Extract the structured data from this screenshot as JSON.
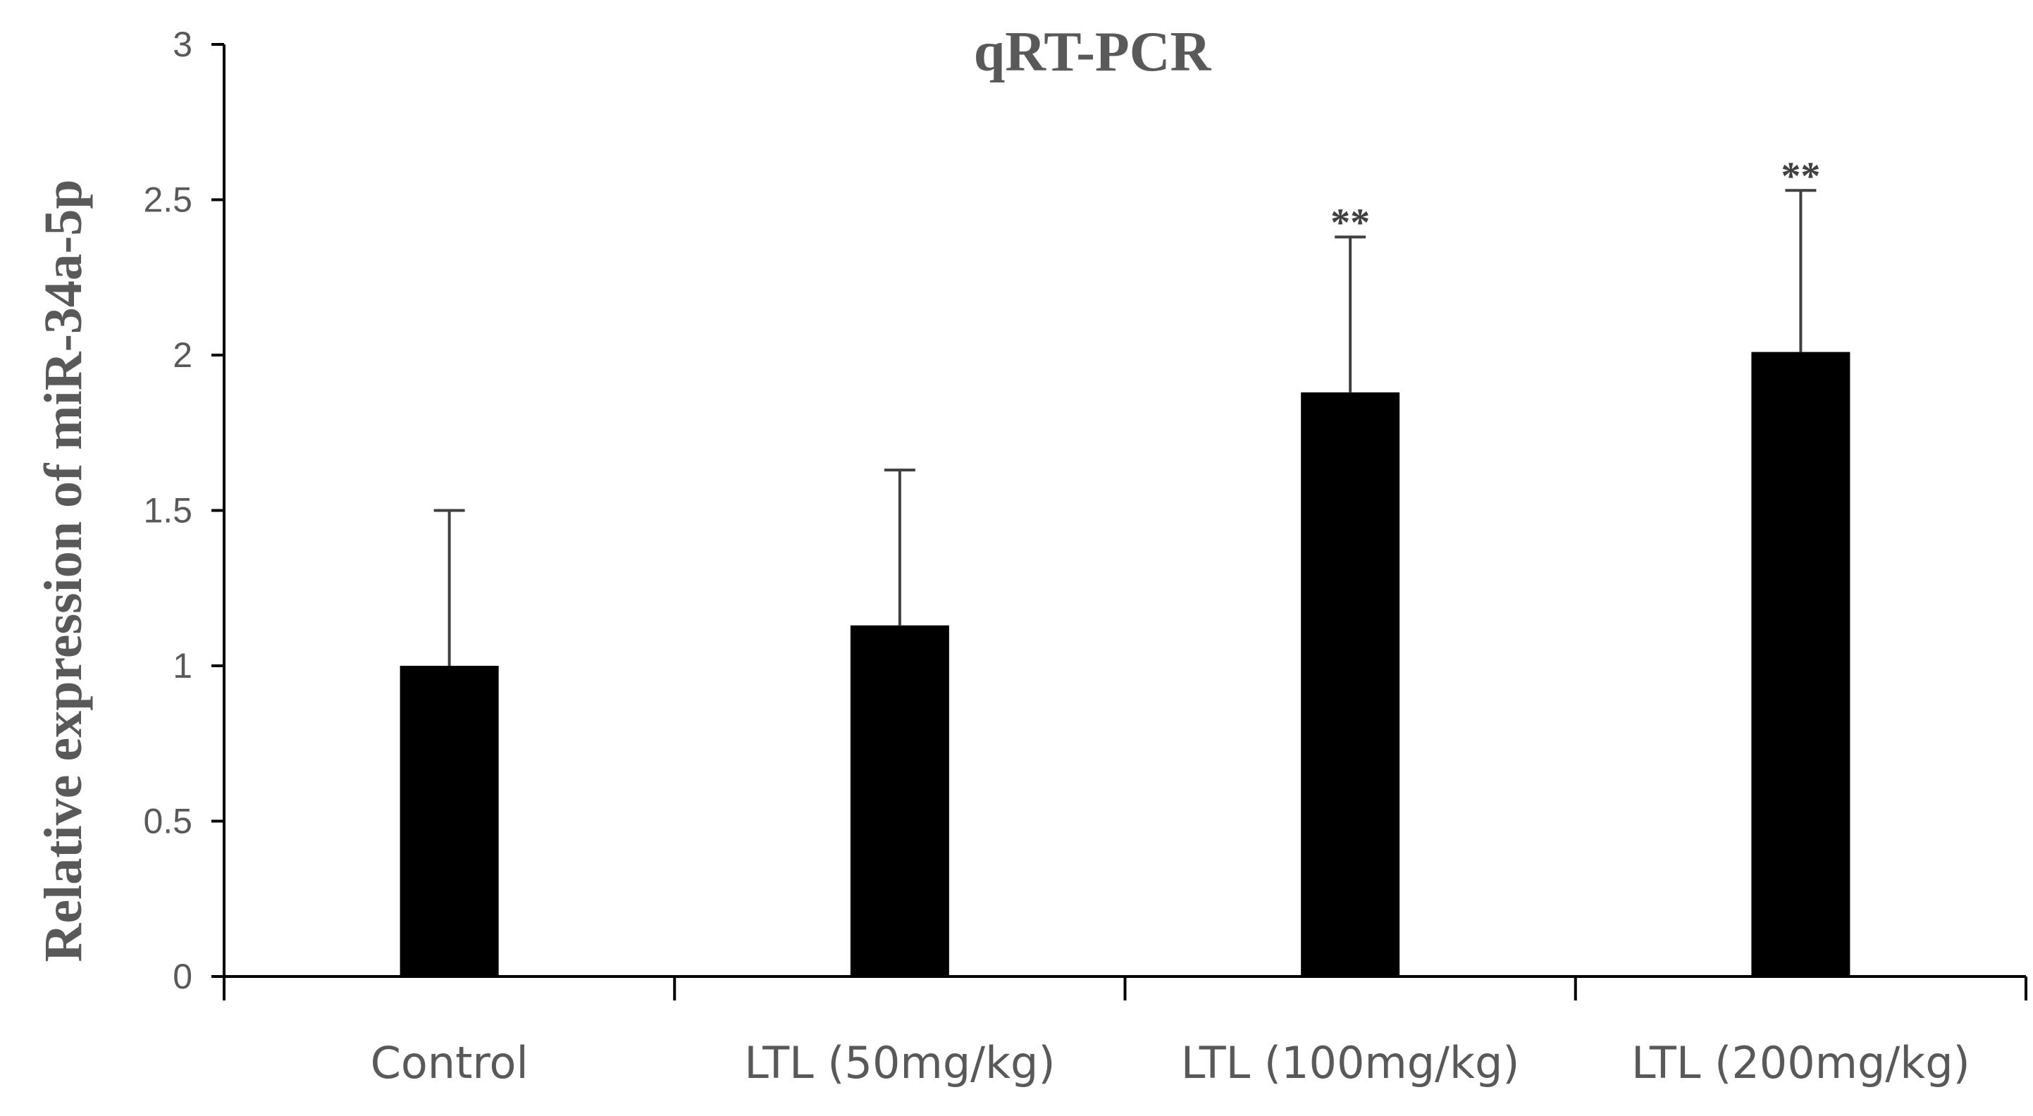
{
  "chart_data": {
    "type": "bar",
    "title": "qRT-PCR",
    "xlabel": "",
    "ylabel": "Relative expression of miR-34a-5p",
    "categories": [
      "Control",
      "LTL (50mg/kg)",
      "LTL (100mg/kg)",
      "LTL (200mg/kg)"
    ],
    "values": [
      1.0,
      1.13,
      1.88,
      2.01
    ],
    "error_upper": [
      0.5,
      0.5,
      0.5,
      0.52
    ],
    "annotations": [
      "",
      "",
      "**",
      "**"
    ],
    "ylim": [
      0,
      3
    ],
    "yticks": [
      0,
      0.5,
      1,
      1.5,
      2,
      2.5,
      3
    ],
    "ytick_labels": [
      "0",
      "0.5",
      "1",
      "1.5",
      "2",
      "2.5",
      "3"
    ],
    "grid": false,
    "bar_color": "#000000",
    "axis_color": "#000000",
    "error_color": "#404040",
    "text_color": "#595959"
  }
}
